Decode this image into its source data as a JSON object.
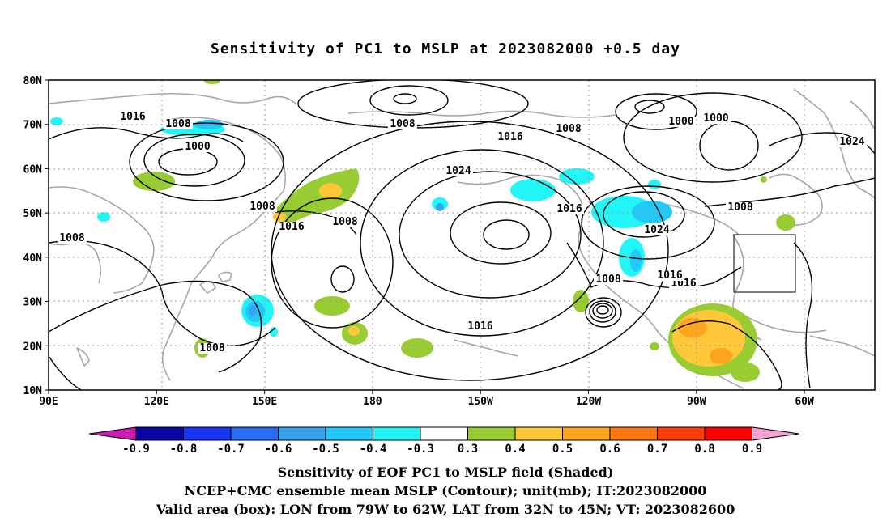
{
  "title": "Sensitivity of PC1 to MSLP at 2023082000 +0.5 day",
  "lat_ticks": [
    "80N",
    "70N",
    "60N",
    "50N",
    "40N",
    "30N",
    "20N",
    "10N"
  ],
  "lon_ticks": [
    "90E",
    "120E",
    "150E",
    "180",
    "150W",
    "120W",
    "90W",
    "60W"
  ],
  "contour_labels": [
    "1016",
    "1008",
    "1000",
    "1008",
    "1008",
    "1000",
    "1000",
    "1024",
    "1016",
    "1024",
    "1008",
    "1016",
    "1008",
    "1016",
    "1016",
    "1024",
    "1008",
    "1008",
    "1016",
    "1016",
    "1016",
    "1008",
    "1008"
  ],
  "colorbar": {
    "labels": [
      "-0.9",
      "-0.8",
      "-0.7",
      "-0.6",
      "-0.5",
      "-0.4",
      "-0.3",
      "0.3",
      "0.4",
      "0.5",
      "0.6",
      "0.7",
      "0.8",
      "0.9"
    ],
    "colors": [
      "#0a06a6",
      "#1a34f5",
      "#2a6cf0",
      "#3aa3ee",
      "#22c8f8",
      "#22f5f5",
      "#ffffff",
      "#99cc33",
      "#ffc83a",
      "#ffa41e",
      "#ff7814",
      "#ff3d0a",
      "#ff0000"
    ],
    "left_end_color": "#c81cb4",
    "right_end_color": "#f7a2d4"
  },
  "captions": [
    "Sensitivity of EOF PC1 to MSLP field (Shaded)",
    "NCEP+CMC ensemble mean MSLP (Contour); unit(mb); IT:2023082000",
    "Valid area (box): LON from 79W to 62W, LAT from 32N to 45N; VT: 2023082600"
  ]
}
